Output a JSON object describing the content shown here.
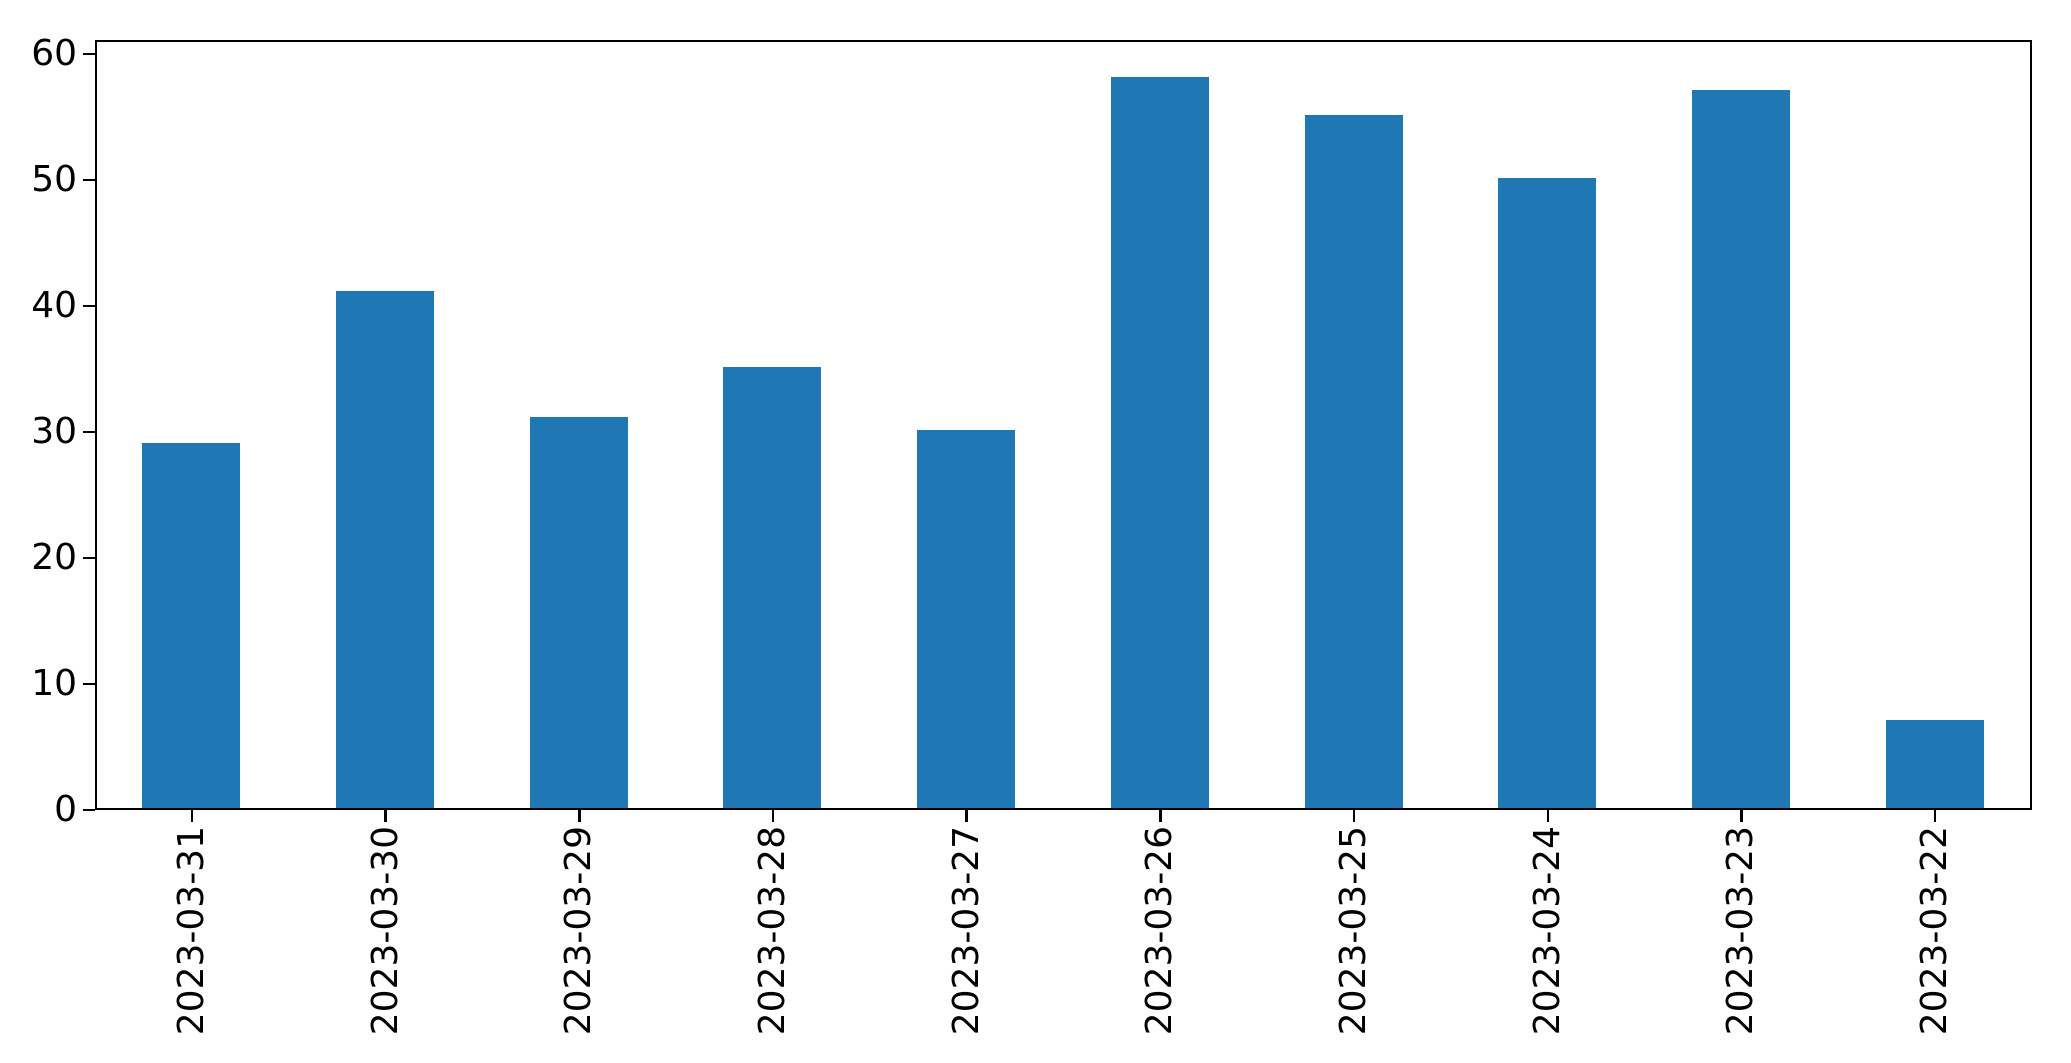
{
  "chart_data": {
    "type": "bar",
    "categories": [
      "2023-03-31",
      "2023-03-30",
      "2023-03-29",
      "2023-03-28",
      "2023-03-27",
      "2023-03-26",
      "2023-03-25",
      "2023-03-24",
      "2023-03-23",
      "2023-03-22"
    ],
    "values": [
      29,
      41,
      31,
      35,
      30,
      58,
      55,
      50,
      57,
      7
    ],
    "title": "",
    "xlabel": "",
    "ylabel": "",
    "ylim": [
      0,
      61.1
    ],
    "yticks": [
      0,
      10,
      20,
      30,
      40,
      50,
      60
    ],
    "x_tick_rotation_deg": 90,
    "bar_color": "#1f77b4",
    "axis_color": "#000000",
    "background_color": "#ffffff",
    "grid": false,
    "legend": null
  }
}
